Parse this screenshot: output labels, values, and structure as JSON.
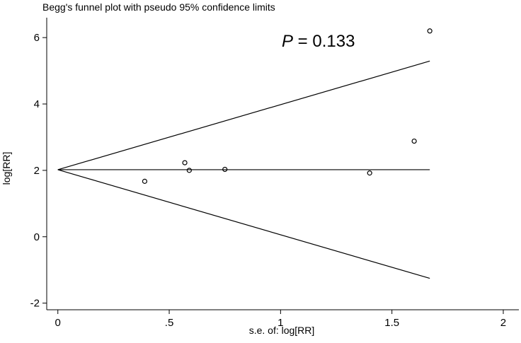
{
  "chart_data": {
    "type": "scatter",
    "title": "Begg's funnel plot with pseudo 95% confidence limits",
    "xlabel": "s.e. of: log[RR]",
    "ylabel": "log[RR]",
    "xlim": [
      -0.05,
      2.07
    ],
    "ylim": [
      -2.2,
      6.6
    ],
    "x_ticks": [
      0,
      0.5,
      1,
      1.5,
      2
    ],
    "x_tick_labels": [
      "0",
      ".5",
      "1",
      "1.5",
      "2"
    ],
    "y_ticks": [
      -2,
      0,
      2,
      4,
      6
    ],
    "y_tick_labels": [
      "-2",
      "0",
      "2",
      "4",
      "6"
    ],
    "pooled_estimate": 2.02,
    "max_se": 1.67,
    "points": [
      {
        "x": 0.39,
        "y": 1.67
      },
      {
        "x": 0.57,
        "y": 2.23
      },
      {
        "x": 0.59,
        "y": 2.0
      },
      {
        "x": 0.75,
        "y": 2.03
      },
      {
        "x": 1.4,
        "y": 1.92
      },
      {
        "x": 1.6,
        "y": 2.88
      },
      {
        "x": 1.67,
        "y": 6.2
      }
    ],
    "annotation": {
      "italic_part": "P",
      "rest": " = 0.133"
    },
    "grid": false,
    "legend": "none"
  }
}
